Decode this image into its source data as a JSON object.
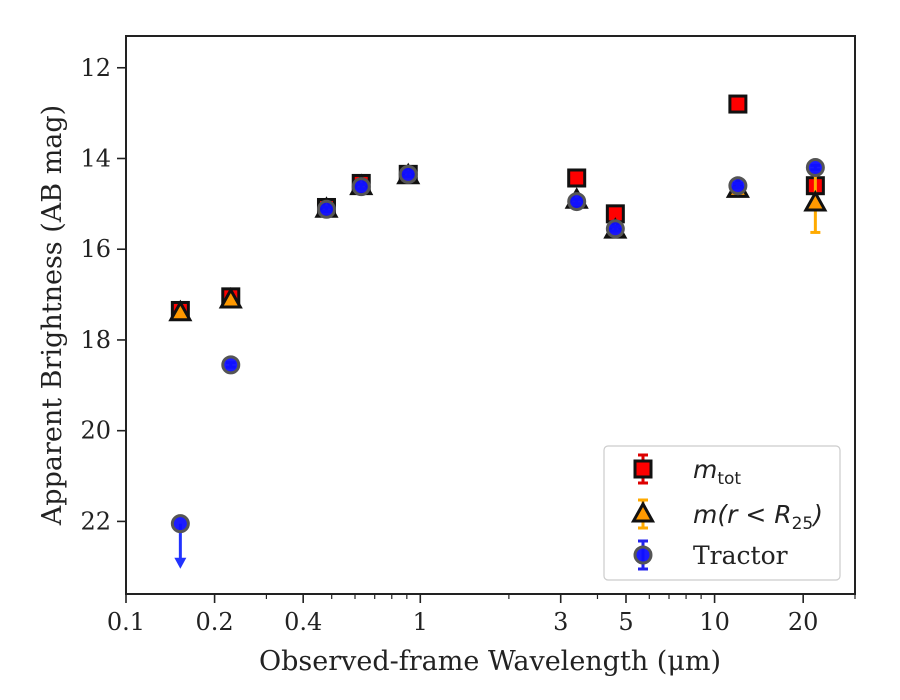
{
  "chart_data": {
    "type": "scatter",
    "xlabel": "Observed-frame Wavelength (μm)",
    "ylabel": "Apparent Brightness (AB mag)",
    "xscale": "log",
    "xlim": [
      0.1,
      30
    ],
    "ylim": [
      23.6,
      11.3
    ],
    "y_inverted": true,
    "x_ticks": [
      0.1,
      0.2,
      0.4,
      1,
      3,
      5,
      10,
      20
    ],
    "x_tick_labels": [
      "0.1",
      "0.2",
      "0.4",
      "1",
      "3",
      "5",
      "10",
      "20"
    ],
    "y_ticks": [
      12,
      14,
      16,
      18,
      20,
      22
    ],
    "y_tick_labels": [
      "12",
      "14",
      "16",
      "18",
      "20",
      "22"
    ],
    "grid": false,
    "legend_position": "lower-right",
    "series": [
      {
        "key": "mtot",
        "legend": {
          "main": "m",
          "sub": "tot"
        },
        "marker": "square",
        "fill": "#ff0000",
        "edge": "#111111",
        "errcolor": "#dd0000",
        "points": [
          {
            "x": 0.153,
            "y": 17.35,
            "err": 0.1
          },
          {
            "x": 0.227,
            "y": 17.05,
            "err": 0.1
          },
          {
            "x": 0.48,
            "y": 15.08,
            "err": 0.08
          },
          {
            "x": 0.63,
            "y": 14.55,
            "err": 0.08
          },
          {
            "x": 0.91,
            "y": 14.35,
            "err": 0.05
          },
          {
            "x": 3.4,
            "y": 14.43,
            "err": 0.05
          },
          {
            "x": 4.6,
            "y": 15.22,
            "err": 0.05
          },
          {
            "x": 12.0,
            "y": 12.8,
            "err": 0.05
          },
          {
            "x": 22.0,
            "y": 14.6,
            "err": 0.05
          }
        ]
      },
      {
        "key": "m25",
        "legend": {
          "main": "m(r < R",
          "sub": "25",
          "tail": ")"
        },
        "marker": "triangle",
        "fill": "#ff9900",
        "edge": "#111111",
        "errcolor": "#ffaa00",
        "points": [
          {
            "x": 0.153,
            "y": 17.4,
            "err": 0.05
          },
          {
            "x": 0.227,
            "y": 17.12,
            "err": 0.05
          },
          {
            "x": 0.48,
            "y": 15.12,
            "err": 0.05
          },
          {
            "x": 0.63,
            "y": 14.62,
            "err": 0.05
          },
          {
            "x": 0.91,
            "y": 14.38,
            "err": 0.05
          },
          {
            "x": 3.4,
            "y": 14.92,
            "err": 0.05
          },
          {
            "x": 4.6,
            "y": 15.58,
            "err": 0.05
          },
          {
            "x": 12.0,
            "y": 14.68,
            "err": 0.05
          },
          {
            "x": 22.0,
            "y": 14.98,
            "err": 0.65
          }
        ]
      },
      {
        "key": "tractor",
        "legend": {
          "main": "Tractor"
        },
        "marker": "circle",
        "fill": "#1010ff",
        "edge": "#555555",
        "errcolor": "#2222ee",
        "upper_limit_color": "#2233ff",
        "points": [
          {
            "x": 0.153,
            "y": 22.05,
            "upper_limit": true
          },
          {
            "x": 0.227,
            "y": 18.55,
            "err": 0.05
          },
          {
            "x": 0.48,
            "y": 15.12,
            "err": 0.05
          },
          {
            "x": 0.63,
            "y": 14.62,
            "err": 0.05
          },
          {
            "x": 0.91,
            "y": 14.35,
            "err": 0.05
          },
          {
            "x": 3.4,
            "y": 14.95,
            "err": 0.05
          },
          {
            "x": 4.6,
            "y": 15.55,
            "err": 0.05
          },
          {
            "x": 12.0,
            "y": 14.6,
            "err": 0.05
          },
          {
            "x": 22.0,
            "y": 14.2,
            "err": 0.05
          }
        ]
      }
    ]
  }
}
